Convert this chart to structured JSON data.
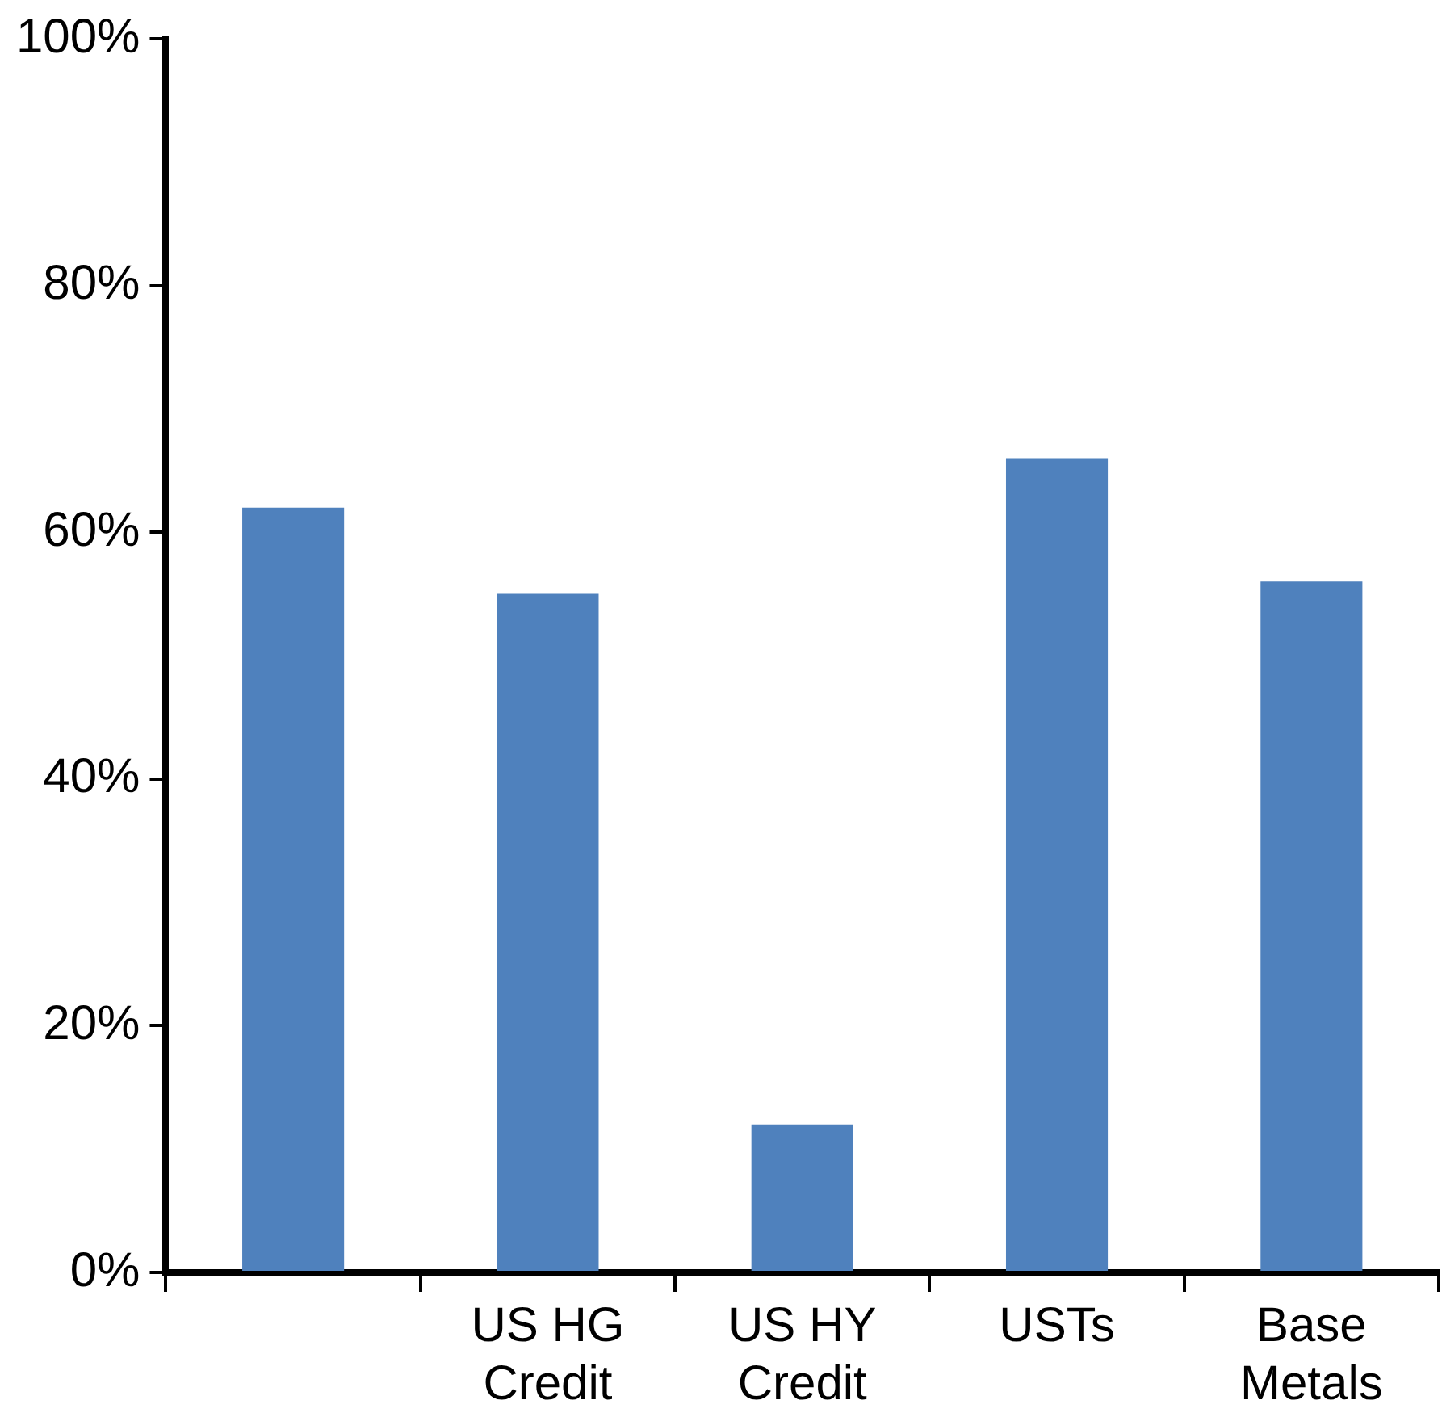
{
  "chart_data": {
    "type": "bar",
    "categories": [
      null,
      "US HG\nCredit",
      "US HY\nCredit",
      "USTs",
      "Base\nMetals"
    ],
    "values": [
      62,
      55,
      12,
      66,
      56
    ],
    "color": "#4f81bd",
    "ylim": [
      0,
      100
    ],
    "yticks": [
      {
        "value": 0,
        "label": "0%"
      },
      {
        "value": 20,
        "label": "20%"
      },
      {
        "value": 40,
        "label": "40%"
      },
      {
        "value": 60,
        "label": "60%"
      },
      {
        "value": 80,
        "label": "80%"
      },
      {
        "value": 100,
        "label": "100%"
      }
    ],
    "grid": false,
    "legend": false
  }
}
